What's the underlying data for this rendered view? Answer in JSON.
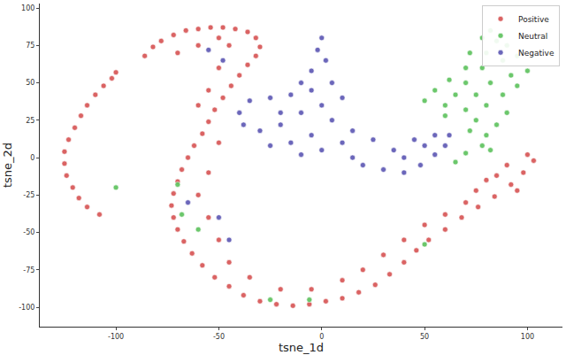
{
  "chart_data": {
    "type": "scatter",
    "x_label": "tsne_1d",
    "y_label": "tsne_2d",
    "xlim": [
      -137,
      117
    ],
    "ylim": [
      -113,
      103
    ],
    "xticks": [
      -100,
      -50,
      0,
      50,
      100
    ],
    "yticks": [
      -100,
      -75,
      -50,
      -25,
      0,
      25,
      50,
      75,
      100
    ],
    "grid": false,
    "legend": "upper right",
    "marker": "circle",
    "series": [
      {
        "name": "Positive",
        "color": "#d65353",
        "x": [
          -108,
          -114,
          -118,
          -121,
          -124,
          -125,
          -125,
          -123,
          -120,
          -117,
          -114,
          -110,
          -106,
          -102,
          -100,
          -86,
          -82,
          -78,
          -72,
          -66,
          -60,
          -54,
          -48,
          -42,
          -36,
          -32,
          -30,
          -32,
          -36,
          -40,
          -44,
          -48,
          -52,
          -55,
          -58,
          -62,
          -65,
          -68,
          -70,
          -72,
          -73,
          -72,
          -70,
          -67,
          -63,
          -58,
          -52,
          -45,
          -38,
          -30,
          -22,
          -14,
          -6,
          2,
          10,
          18,
          26,
          33,
          40,
          46,
          52,
          60,
          68,
          76,
          84,
          92,
          98,
          103,
          100,
          -70,
          -60,
          -50,
          -45,
          -50,
          -55,
          -60,
          -50,
          -55,
          -60,
          -55,
          -50,
          -45,
          -35,
          -20,
          -5,
          10,
          20,
          30,
          40,
          50,
          60,
          75,
          85,
          90,
          80,
          95,
          70
        ],
        "y": [
          -38,
          -33,
          -27,
          -20,
          -12,
          -4,
          4,
          12,
          20,
          28,
          35,
          42,
          48,
          53,
          57,
          68,
          74,
          78,
          82,
          85,
          86,
          87,
          87,
          86,
          84,
          80,
          74,
          68,
          62,
          55,
          48,
          40,
          32,
          24,
          16,
          8,
          0,
          -8,
          -16,
          -24,
          -32,
          -40,
          -48,
          -56,
          -64,
          -72,
          -80,
          -86,
          -92,
          -96,
          -98,
          -99,
          -98,
          -96,
          -94,
          -90,
          -85,
          -78,
          -70,
          -62,
          -55,
          -48,
          -40,
          -33,
          -26,
          -18,
          -10,
          -2,
          2,
          70,
          75,
          80,
          75,
          60,
          45,
          35,
          10,
          -10,
          -25,
          -40,
          -55,
          -70,
          -80,
          -88,
          -88,
          -82,
          -75,
          -65,
          -55,
          -45,
          -38,
          -22,
          -12,
          -5,
          -15,
          -22,
          -30
        ]
      },
      {
        "name": "Neutral",
        "color": "#5cc15c",
        "x": [
          82,
          78,
          85,
          90,
          72,
          80,
          95,
          88,
          70,
          78,
          100,
          92,
          62,
          70,
          82,
          95,
          55,
          65,
          75,
          88,
          50,
          60,
          80,
          90,
          70,
          75,
          85,
          80,
          72,
          78,
          70,
          65,
          82,
          60,
          -70,
          -68,
          -60,
          -25,
          -6,
          50,
          -100
        ],
        "y": [
          85,
          80,
          78,
          75,
          70,
          70,
          68,
          65,
          60,
          60,
          58,
          55,
          52,
          50,
          50,
          48,
          45,
          42,
          42,
          42,
          38,
          35,
          35,
          30,
          32,
          25,
          22,
          15,
          18,
          8,
          3,
          -3,
          5,
          28,
          -18,
          -38,
          -48,
          -95,
          -95,
          -58,
          -20
        ]
      },
      {
        "name": "Negative",
        "color": "#5b56b3",
        "x": [
          0,
          -2,
          2,
          -5,
          -10,
          -5,
          -15,
          -25,
          -35,
          -40,
          -38,
          -30,
          -20,
          -10,
          0,
          5,
          -5,
          -15,
          -25,
          -10,
          0,
          10,
          15,
          20,
          30,
          40,
          48,
          55,
          60,
          62,
          55,
          45,
          35,
          25,
          15,
          10,
          5,
          -20,
          40,
          50,
          -50,
          -45,
          -55,
          -65,
          -48
        ],
        "y": [
          80,
          72,
          65,
          58,
          50,
          45,
          42,
          40,
          38,
          30,
          22,
          18,
          22,
          30,
          35,
          25,
          15,
          10,
          8,
          2,
          5,
          10,
          0,
          -5,
          -8,
          -10,
          -5,
          2,
          8,
          15,
          15,
          12,
          5,
          12,
          18,
          40,
          50,
          30,
          0,
          8,
          -40,
          -55,
          72,
          -30,
          65
        ]
      }
    ]
  }
}
